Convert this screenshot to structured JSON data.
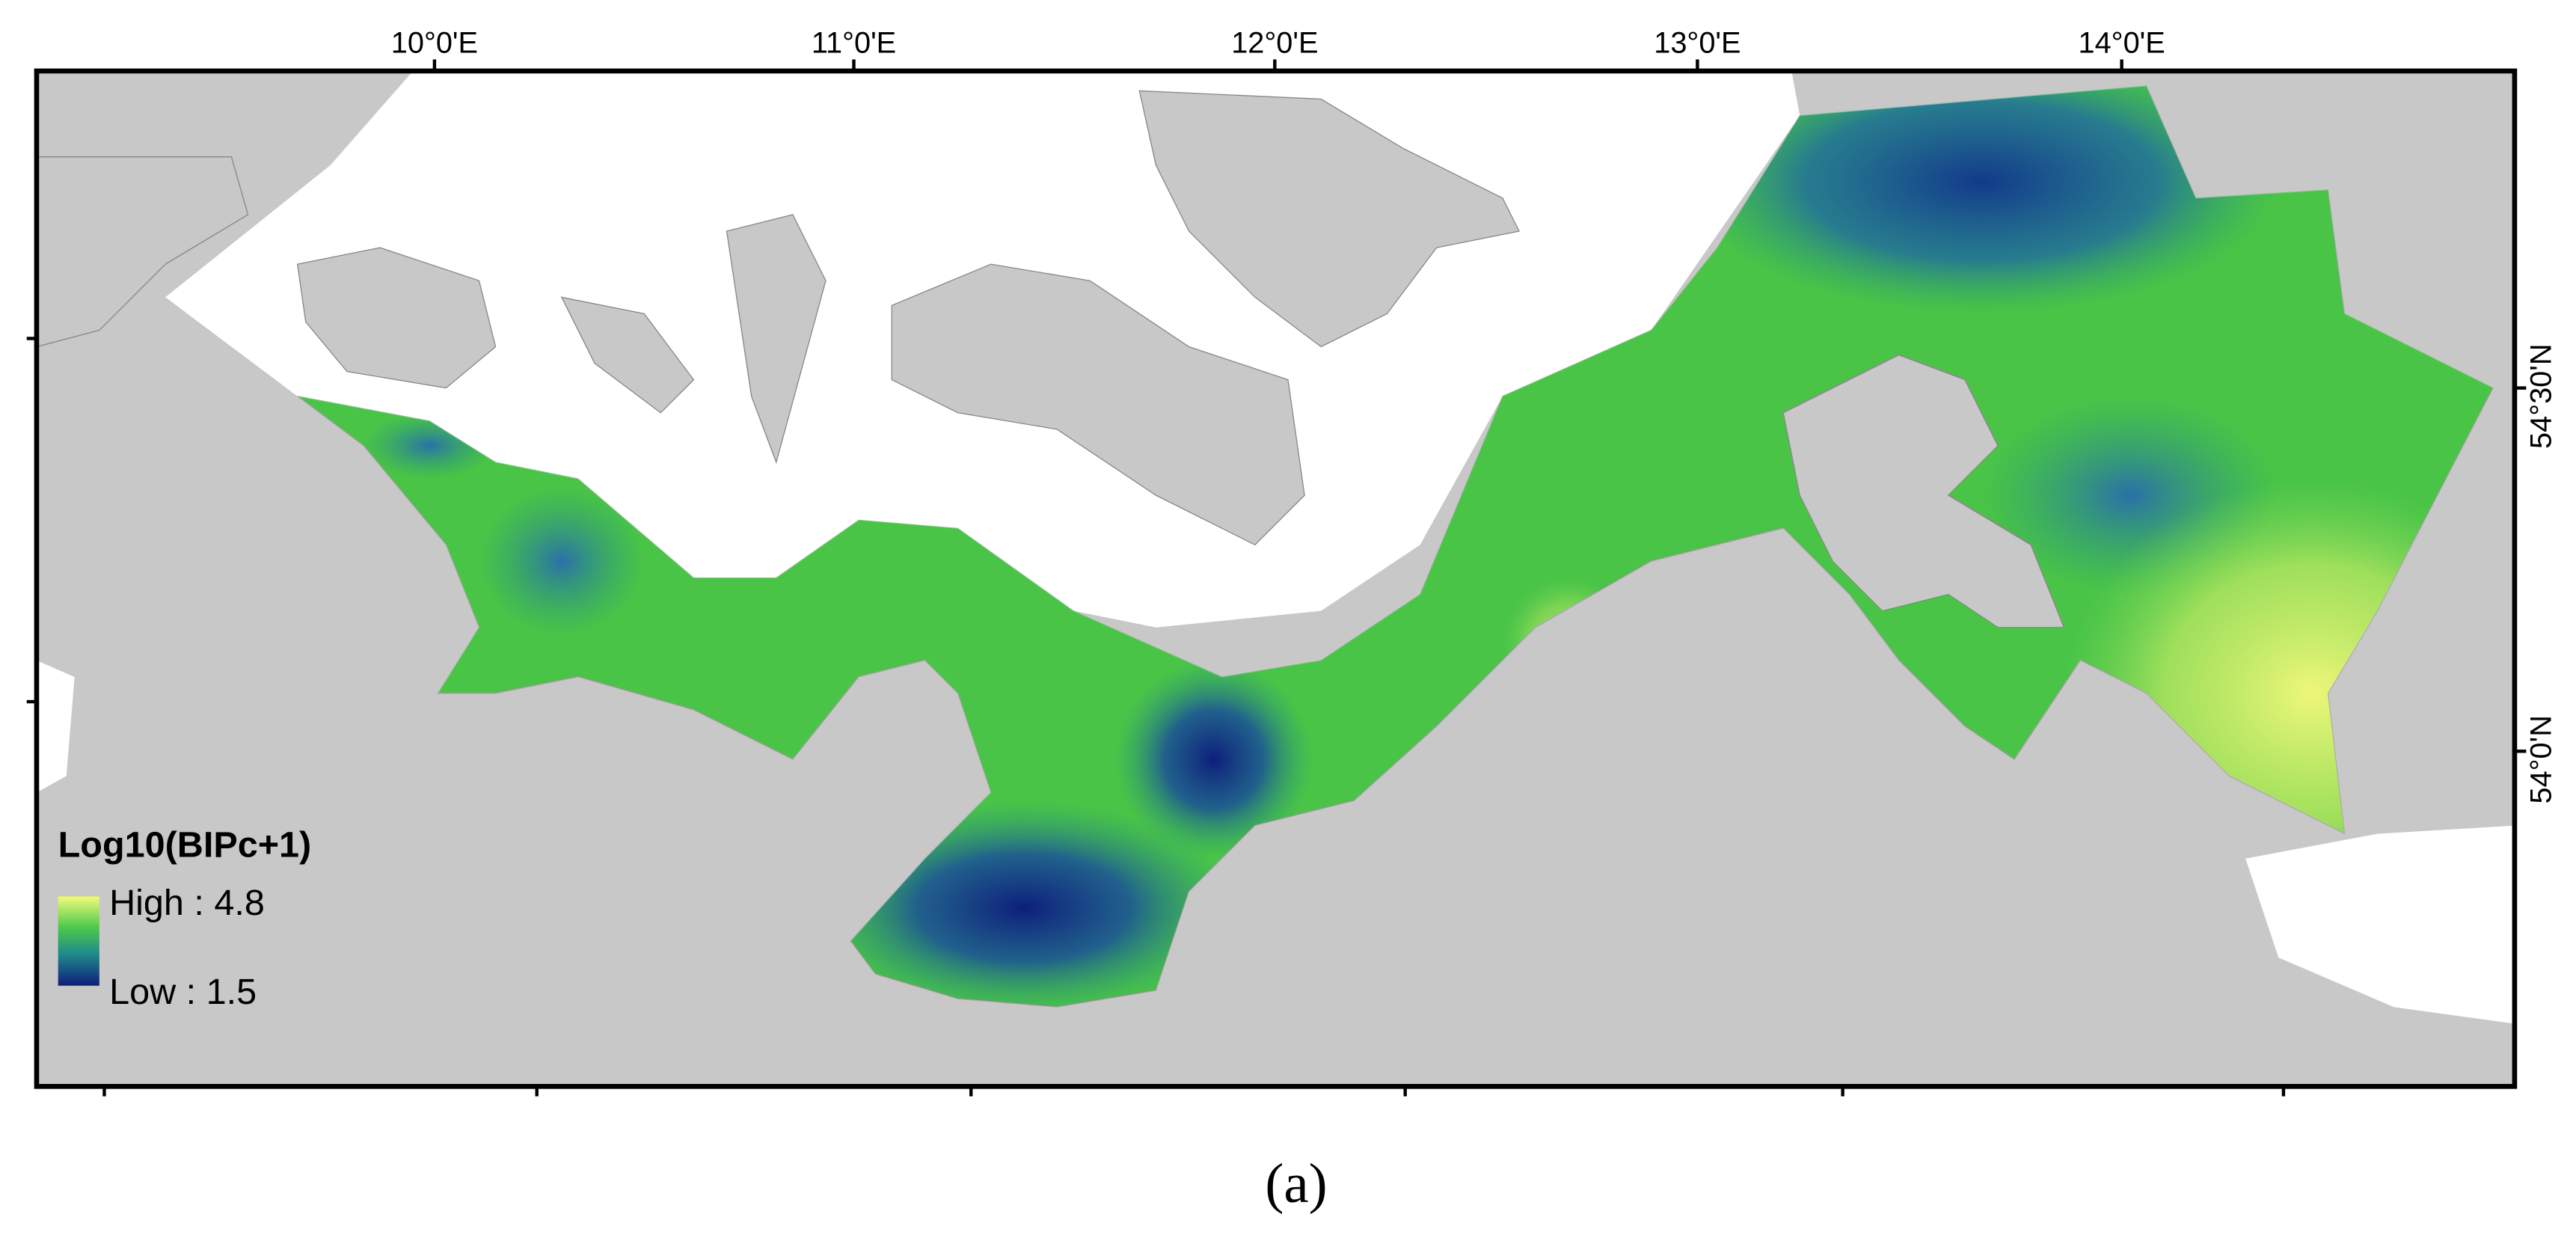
{
  "map": {
    "longitude_labels": [
      "10°0'E",
      "11°0'E",
      "12°0'E",
      "13°0'E",
      "14°0'E"
    ],
    "latitude_labels": [
      "54°30'N",
      "54°0'N"
    ],
    "legend": {
      "title": "Log10(BIPc+1)",
      "high": "High : 4.8",
      "low": "Low : 1.5"
    }
  },
  "caption": "(a)"
}
